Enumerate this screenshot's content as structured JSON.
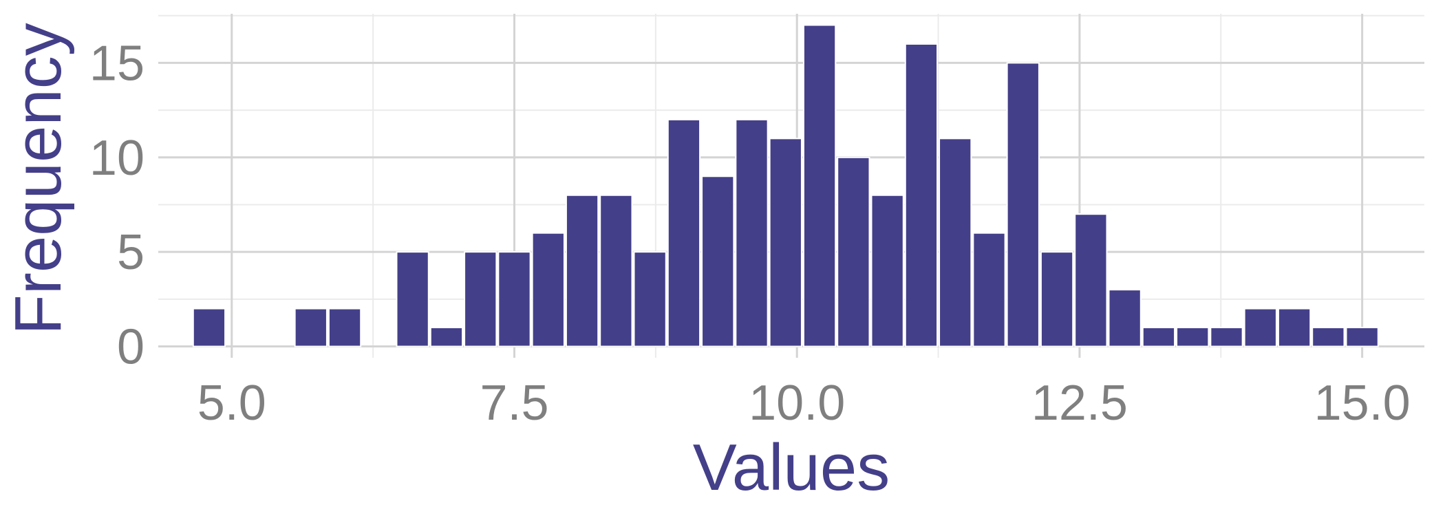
{
  "chart_data": {
    "type": "bar",
    "subtype": "histogram",
    "title": "",
    "xlabel": "Values",
    "ylabel": "Frequency",
    "xlim": [
      4.35,
      15.55
    ],
    "ylim": [
      -0.6,
      17.6
    ],
    "x_ticks": [
      5.0,
      7.5,
      10.0,
      12.5,
      15.0
    ],
    "x_tick_labels": [
      "5.0",
      "7.5",
      "10.0",
      "12.5",
      "15.0"
    ],
    "y_ticks": [
      0,
      5,
      10,
      15
    ],
    "y_tick_labels": [
      "0",
      "5",
      "10",
      "15"
    ],
    "grid": true,
    "legend": "none",
    "bin_width": 0.3,
    "bins": [
      {
        "x": 4.8,
        "count": 2
      },
      {
        "x": 5.1,
        "count": 0
      },
      {
        "x": 5.4,
        "count": 0
      },
      {
        "x": 5.7,
        "count": 2
      },
      {
        "x": 6.0,
        "count": 2
      },
      {
        "x": 6.3,
        "count": 0
      },
      {
        "x": 6.6,
        "count": 5
      },
      {
        "x": 6.9,
        "count": 1
      },
      {
        "x": 7.2,
        "count": 5
      },
      {
        "x": 7.5,
        "count": 5
      },
      {
        "x": 7.8,
        "count": 6
      },
      {
        "x": 8.1,
        "count": 8
      },
      {
        "x": 8.4,
        "count": 8
      },
      {
        "x": 8.7,
        "count": 5
      },
      {
        "x": 9.0,
        "count": 12
      },
      {
        "x": 9.3,
        "count": 9
      },
      {
        "x": 9.6,
        "count": 12
      },
      {
        "x": 9.9,
        "count": 11
      },
      {
        "x": 10.2,
        "count": 17
      },
      {
        "x": 10.5,
        "count": 10
      },
      {
        "x": 10.8,
        "count": 8
      },
      {
        "x": 11.1,
        "count": 16
      },
      {
        "x": 11.4,
        "count": 11
      },
      {
        "x": 11.7,
        "count": 6
      },
      {
        "x": 12.0,
        "count": 15
      },
      {
        "x": 12.3,
        "count": 5
      },
      {
        "x": 12.6,
        "count": 7
      },
      {
        "x": 12.9,
        "count": 3
      },
      {
        "x": 13.2,
        "count": 1
      },
      {
        "x": 13.5,
        "count": 1
      },
      {
        "x": 13.8,
        "count": 1
      },
      {
        "x": 14.1,
        "count": 2
      },
      {
        "x": 14.4,
        "count": 2
      },
      {
        "x": 14.7,
        "count": 1
      },
      {
        "x": 15.0,
        "count": 1
      }
    ]
  },
  "colors": {
    "bar_fill": "#443f89",
    "bar_edge": "#ffffff",
    "axis_title": "#443f89",
    "tick_text": "#7f7f7f",
    "grid_major": "#d4d4d4",
    "grid_minor": "#ebebeb"
  }
}
